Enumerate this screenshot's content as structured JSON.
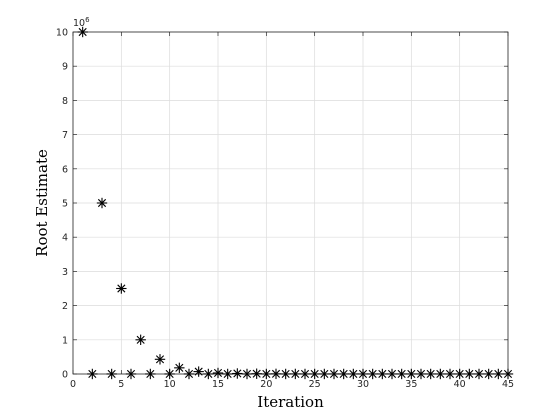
{
  "chart_data": {
    "type": "scatter",
    "title": "",
    "xlabel": "Iteration",
    "ylabel": "Root Estimate",
    "xlim": [
      0,
      45
    ],
    "ylim": [
      0,
      10
    ],
    "y_exponent_base": "10",
    "y_exponent_power": "6",
    "x_ticks": [
      0,
      5,
      10,
      15,
      20,
      25,
      30,
      35,
      40,
      45
    ],
    "y_ticks": [
      0,
      1,
      2,
      3,
      4,
      5,
      6,
      7,
      8,
      9,
      10
    ],
    "grid": true,
    "marker": "asterisk",
    "series": [
      {
        "x": [
          1,
          2,
          3,
          4,
          5,
          6,
          7,
          8,
          9,
          10,
          11,
          12,
          13,
          14,
          15,
          16,
          17,
          18,
          19,
          20,
          21,
          22,
          23,
          24,
          25,
          26,
          27,
          28,
          29,
          30,
          31,
          32,
          33,
          34,
          35,
          36,
          37,
          38,
          39,
          40,
          41,
          42,
          43,
          44,
          45
        ],
        "y": [
          10,
          0.001,
          5,
          0.001,
          2.5,
          0.001,
          1,
          0.001,
          0.43,
          0.001,
          0.18,
          0.001,
          0.07,
          0.001,
          0.03,
          0.001,
          0.015,
          0.001,
          0.008,
          0.001,
          0.004,
          0.001,
          0.002,
          0.001,
          0.001,
          0.001,
          0.001,
          0.001,
          0.001,
          0.001,
          0.001,
          0.001,
          0.001,
          0.001,
          0.001,
          0.001,
          0.001,
          0.001,
          0.001,
          0.001,
          0.001,
          0.001,
          0.001,
          0.001,
          0.001
        ]
      }
    ]
  }
}
